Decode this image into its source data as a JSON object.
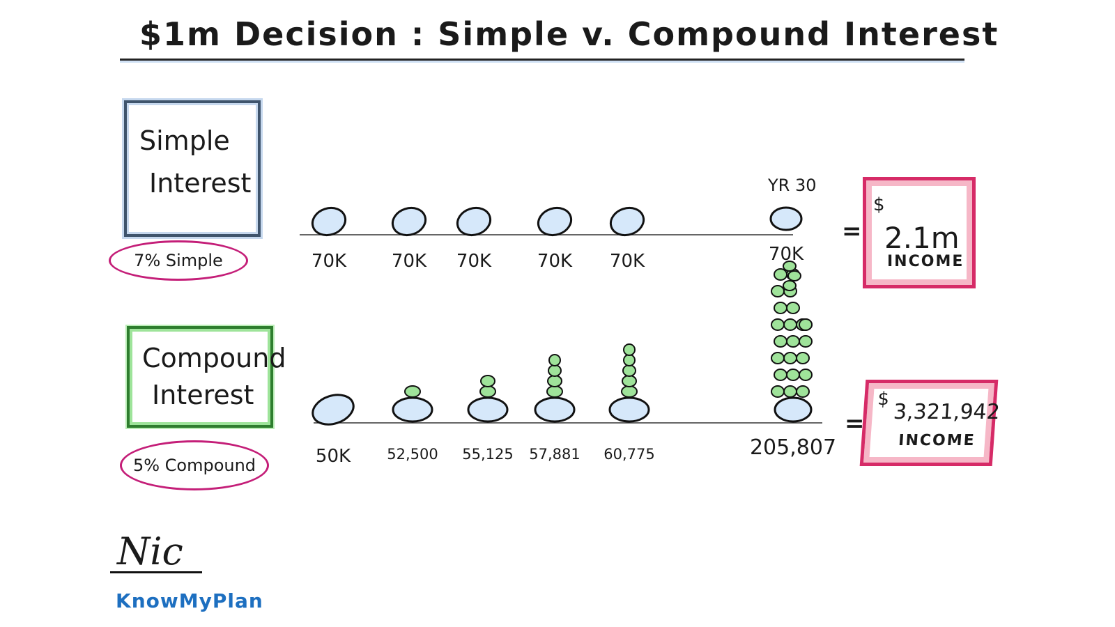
{
  "title": "$1m Decision : Simple v. Compound Interest",
  "simple": {
    "box_line1": "Simple",
    "box_line2": "Interest",
    "rate_label": "7% Simple",
    "year_label": "YR 30",
    "payments": [
      "70K",
      "70K",
      "70K",
      "70K",
      "70K",
      "70K"
    ],
    "equals": "=",
    "result_symbol": "$",
    "result_amount": "2.1m",
    "result_unit": "INCOME"
  },
  "compound": {
    "box_line1": "Compound",
    "box_line2": "Interest",
    "rate_label": "5% Compound",
    "payments": [
      "50K",
      "52,500",
      "55,125",
      "57,881",
      "60,775",
      "205,807"
    ],
    "growth_levels": [
      0,
      1,
      2,
      4,
      5,
      24
    ],
    "equals": "=",
    "result_symbol": "$",
    "result_amount": "3,321,942",
    "result_unit": "INCOME"
  },
  "author": {
    "signature": "Nic",
    "brand": "KnowMyPlan"
  },
  "colors": {
    "coin_fill": "#d6e8fa",
    "growth_fill": "#9fe39a",
    "result_border": "#d62b67",
    "rate_circle": "#c41e78",
    "brand": "#1d6fc0"
  }
}
